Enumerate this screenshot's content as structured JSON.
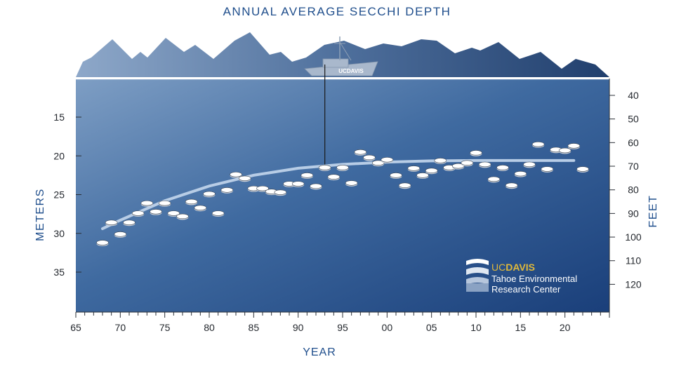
{
  "chart_data": {
    "type": "scatter",
    "title": "ANNUAL AVERAGE SECCHI DEPTH",
    "xlabel": "YEAR",
    "ylabel_left": "METERS",
    "ylabel_right": "FEET",
    "x_ticks": [
      "65",
      "70",
      "75",
      "80",
      "85",
      "90",
      "95",
      "00",
      "05",
      "10",
      "15",
      "20"
    ],
    "y_ticks_left": [
      "15",
      "20",
      "25",
      "30",
      "35"
    ],
    "y_ticks_right": [
      "40",
      "50",
      "60",
      "70",
      "80",
      "90",
      "100",
      "110",
      "120"
    ],
    "xlim": [
      1965,
      2025
    ],
    "ylim_meters": [
      10,
      40
    ],
    "y_inverted": true,
    "series": [
      {
        "x": [
          1968,
          1969,
          1970,
          1971,
          1972,
          1973,
          1974,
          1975,
          1976,
          1977,
          1978,
          1979,
          1980,
          1981,
          1982,
          1983,
          1984,
          1985,
          1986,
          1987,
          1988,
          1989,
          1990,
          1991,
          1992,
          1993,
          1994,
          1995,
          1996,
          1997,
          1998,
          1999,
          2000,
          2001,
          2002,
          2003,
          2004,
          2005,
          2006,
          2007,
          2008,
          2009,
          2010,
          2011,
          2012,
          2013,
          2014,
          2015,
          2016,
          2017,
          2018,
          2019,
          2020,
          2021,
          2022
        ],
        "y": [
          31.2,
          28.6,
          30.1,
          28.6,
          27.4,
          26.1,
          27.2,
          26.1,
          27.4,
          27.8,
          25.9,
          26.7,
          24.9,
          27.4,
          24.4,
          22.4,
          22.9,
          24.2,
          24.2,
          24.6,
          24.7,
          23.6,
          23.6,
          22.5,
          23.9,
          21.5,
          22.7,
          21.5,
          23.5,
          19.5,
          20.2,
          20.9,
          20.5,
          22.5,
          23.8,
          21.6,
          22.5,
          21.9,
          20.6,
          21.5,
          21.3,
          20.9,
          19.6,
          21.1,
          23.0,
          21.5,
          23.8,
          22.3,
          21.1,
          18.5,
          21.7,
          19.2,
          19.3,
          18.7,
          21.7
        ]
      }
    ],
    "trend": {
      "x": [
        1968,
        1970,
        1975,
        1980,
        1985,
        1990,
        1995,
        2000,
        2005,
        2010,
        2015,
        2021
      ],
      "y": [
        29.4,
        28.3,
        25.8,
        23.9,
        22.5,
        21.6,
        21.1,
        20.8,
        20.65,
        20.6,
        20.6,
        20.6
      ]
    },
    "sounding_line_year": 1993
  },
  "logo": {
    "brand_uc": "UC",
    "brand_davis": "DAVIS",
    "line1": "Tahoe Environmental",
    "line2": "Research Center",
    "boat_text": "UCDAVIS"
  },
  "colors": {
    "water_top": "#7e9ec4",
    "water_bottom": "#1a3f7a",
    "mountain_light": "#8ea8c9",
    "mountain_dark": "#213f6d",
    "label": "#1f4e8c",
    "trend": "#b8cde6",
    "disk": "#ffffff",
    "logo_gold": "#e0b93a"
  }
}
